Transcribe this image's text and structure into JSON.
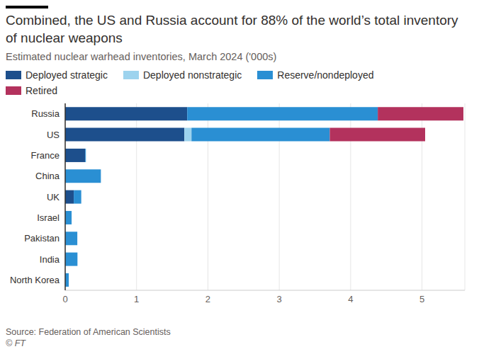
{
  "chart_data": {
    "type": "bar",
    "orientation": "horizontal",
    "stacked": true,
    "grid": true,
    "legend": "top-left",
    "title": "Combined, the US and Russia account for 88% of the world’s total inventory of nuclear weapons",
    "subtitle": "Estimated nuclear warhead inventories, March 2024 ('000s)",
    "source": "Source: Federation of American Scientists",
    "credit": "© FT",
    "categories": [
      "Russia",
      "US",
      "France",
      "China",
      "UK",
      "Israel",
      "Pakistan",
      "India",
      "North Korea"
    ],
    "series": [
      {
        "name": "Deployed strategic",
        "color": "#1d4f8c",
        "values": [
          1.71,
          1.67,
          0.28,
          0,
          0.12,
          0,
          0,
          0,
          0
        ]
      },
      {
        "name": "Deployed nonstrategic",
        "color": "#9dd3ee",
        "values": [
          0,
          0.1,
          0,
          0,
          0,
          0,
          0,
          0,
          0
        ]
      },
      {
        "name": "Reserve/nondeployed",
        "color": "#2a8fd3",
        "values": [
          2.67,
          1.938,
          0.01,
          0.5,
          0.105,
          0.09,
          0.17,
          0.172,
          0.05
        ]
      },
      {
        "name": "Retired",
        "color": "#b3325d",
        "values": [
          1.2,
          1.336,
          0,
          0,
          0,
          0,
          0,
          0,
          0
        ]
      }
    ],
    "xlim": [
      0,
      5.6
    ],
    "xticks": [
      0,
      1,
      2,
      3,
      4,
      5
    ]
  }
}
